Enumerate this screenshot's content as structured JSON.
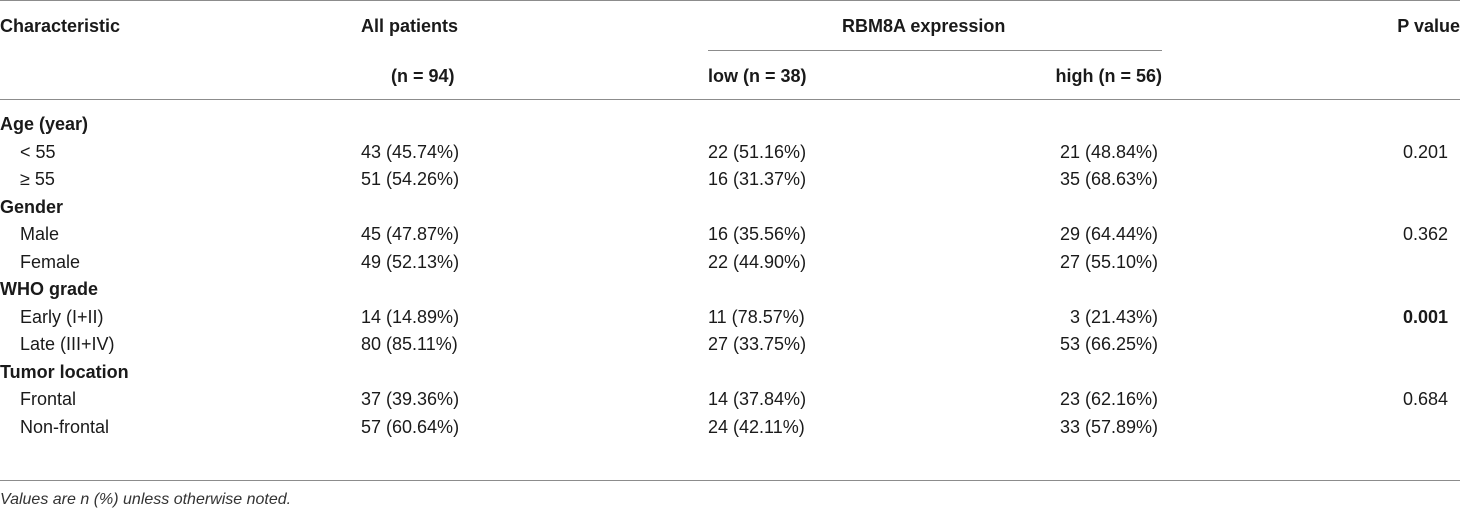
{
  "header": {
    "characteristic": "Characteristic",
    "all_patients": "All patients",
    "all_n": "(n = 94)",
    "expression": "RBM8A expression",
    "low": "low (n = 38)",
    "high": "high (n = 56)",
    "pvalue": "P value"
  },
  "sections": [
    {
      "title": "Age (year)",
      "rows": [
        {
          "label": "< 55",
          "all": "43 (45.74%)",
          "low": "22 (51.16%)",
          "high": "21 (48.84%)",
          "p": "0.201",
          "bold": false
        },
        {
          "label": "≥ 55",
          "all": "51 (54.26%)",
          "low": "16 (31.37%)",
          "high": "35 (68.63%)",
          "p": "",
          "bold": false
        }
      ]
    },
    {
      "title": "Gender",
      "rows": [
        {
          "label": "Male",
          "all": "45 (47.87%)",
          "low": "16 (35.56%)",
          "high": "29 (64.44%)",
          "p": "0.362",
          "bold": false
        },
        {
          "label": "Female",
          "all": "49 (52.13%)",
          "low": "22 (44.90%)",
          "high": "27 (55.10%)",
          "p": "",
          "bold": false
        }
      ]
    },
    {
      "title": "WHO grade",
      "rows": [
        {
          "label": "Early (I+II)",
          "all": "14 (14.89%)",
          "low": "11 (78.57%)",
          "high": "3 (21.43%)",
          "p": "0.001",
          "bold": true
        },
        {
          "label": "Late (III+IV)",
          "all": "80 (85.11%)",
          "low": "27 (33.75%)",
          "high": "53 (66.25%)",
          "p": "",
          "bold": false
        }
      ]
    },
    {
      "title": "Tumor location",
      "rows": [
        {
          "label": "Frontal",
          "all": "37 (39.36%)",
          "low": "14 (37.84%)",
          "high": "23 (62.16%)",
          "p": "0.684",
          "bold": false
        },
        {
          "label": "Non-frontal",
          "all": "57 (60.64%)",
          "low": "24 (42.11%)",
          "high": "33 (57.89%)",
          "p": "",
          "bold": false
        }
      ]
    }
  ],
  "footnote": "Values are n (%) unless otherwise noted."
}
